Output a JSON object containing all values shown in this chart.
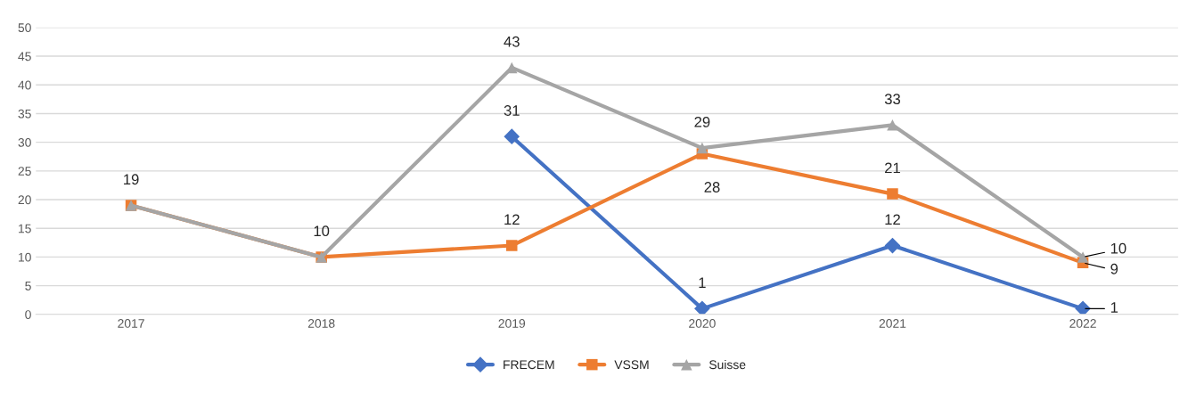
{
  "chart_data": {
    "type": "line",
    "categories": [
      "2017",
      "2018",
      "2019",
      "2020",
      "2021",
      "2022"
    ],
    "series": [
      {
        "name": "FRECEM",
        "color": "#4472c4",
        "marker": "diamond",
        "values": [
          null,
          null,
          31,
          1,
          12,
          1
        ],
        "value_labels": [
          null,
          null,
          "31",
          "1",
          "12",
          "1"
        ]
      },
      {
        "name": "VSSM",
        "color": "#ed7d31",
        "marker": "square",
        "values": [
          19,
          10,
          12,
          28,
          21,
          9
        ],
        "value_labels": [
          "19",
          "10",
          "12",
          "28",
          "21",
          "9"
        ]
      },
      {
        "name": "Suisse",
        "color": "#a5a5a5",
        "marker": "triangle",
        "values": [
          19,
          10,
          43,
          29,
          33,
          10
        ],
        "value_labels": [
          null,
          null,
          "43",
          "29",
          "33",
          "10"
        ]
      }
    ],
    "ylim": [
      0,
      50
    ],
    "yticks": [
      0,
      5,
      10,
      15,
      20,
      25,
      30,
      35,
      40,
      45,
      50
    ],
    "grid": "y",
    "legend": "bottom",
    "line_style": "solid"
  }
}
